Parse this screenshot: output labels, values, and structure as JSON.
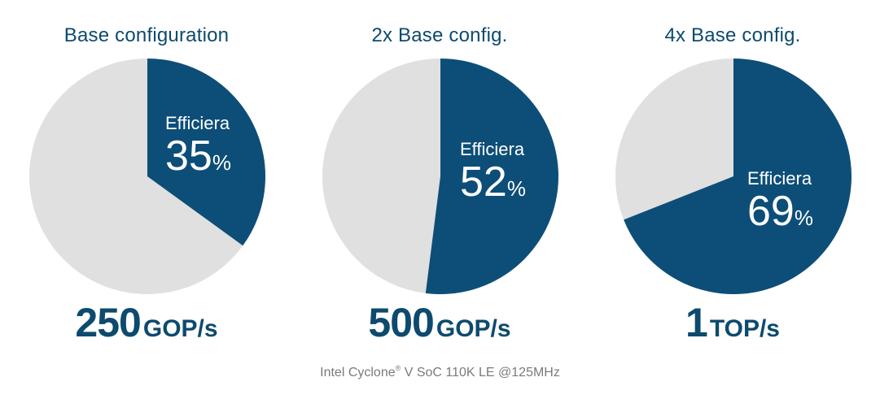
{
  "colors": {
    "slice": "#0d4e78",
    "remainder": "#e0e0e0",
    "title": "#0d4a6e",
    "footer": "#7a7a7a"
  },
  "footer": {
    "text_before": "Intel Cyclone",
    "superscript": "®",
    "text_after": " V SoC 110K LE @125MHz"
  },
  "chart_data": [
    {
      "type": "pie",
      "title": "Base configuration",
      "slice_label": "Efficiera",
      "value": 35,
      "value_unit": "%",
      "throughput_value": "250",
      "throughput_unit": "GOP/s"
    },
    {
      "type": "pie",
      "title": "2x Base config.",
      "slice_label": "Efficiera",
      "value": 52,
      "value_unit": "%",
      "throughput_value": "500",
      "throughput_unit": "GOP/s"
    },
    {
      "type": "pie",
      "title": "4x Base config.",
      "slice_label": "Efficiera",
      "value": 69,
      "value_unit": "%",
      "throughput_value": "1",
      "throughput_unit": "TOP/s"
    }
  ]
}
